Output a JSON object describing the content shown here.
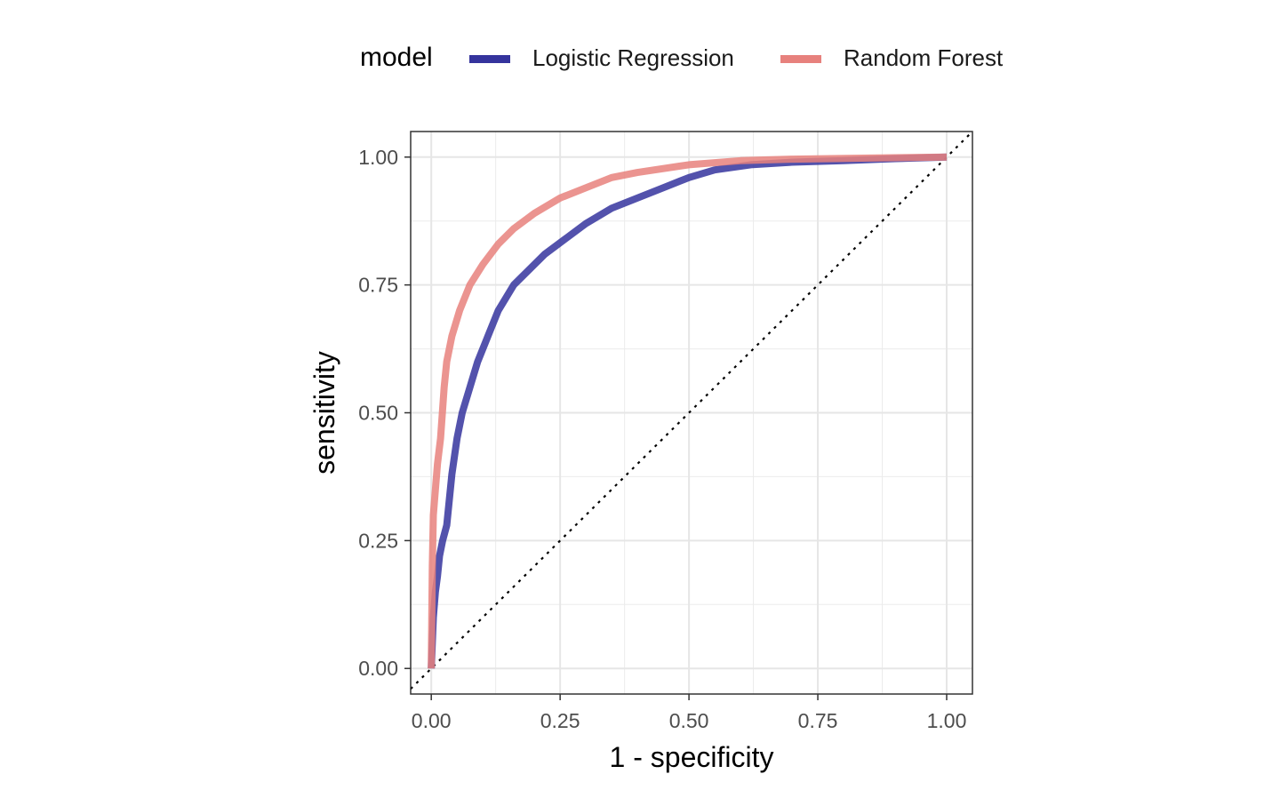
{
  "legend": {
    "title": "model",
    "items": [
      {
        "label": "Logistic Regression",
        "color": "#35349d"
      },
      {
        "label": "Random Forest",
        "color": "#e7817d"
      }
    ]
  },
  "chart_data": {
    "type": "line",
    "xlabel": "1 - specificity",
    "ylabel": "sensitivity",
    "xlim": [
      -0.04,
      1.05
    ],
    "ylim": [
      -0.05,
      1.05
    ],
    "x_ticks": [
      0,
      0.25,
      0.5,
      0.75,
      1
    ],
    "y_ticks": [
      0,
      0.25,
      0.5,
      0.75,
      1
    ],
    "x_tick_labels": [
      "0.00",
      "0.25",
      "0.50",
      "0.75",
      "1.00"
    ],
    "y_tick_labels": [
      "0.00",
      "0.25",
      "0.50",
      "0.75",
      "1.00"
    ],
    "grid": true,
    "legend_position": "top",
    "reference_line": "diagonal dotted",
    "series": [
      {
        "name": "Logistic Regression",
        "color": "#35349d",
        "points": [
          [
            0,
            0
          ],
          [
            0.002,
            0.05
          ],
          [
            0.004,
            0.1
          ],
          [
            0.008,
            0.15
          ],
          [
            0.012,
            0.18
          ],
          [
            0.016,
            0.22
          ],
          [
            0.022,
            0.25
          ],
          [
            0.03,
            0.28
          ],
          [
            0.035,
            0.33
          ],
          [
            0.04,
            0.38
          ],
          [
            0.05,
            0.45
          ],
          [
            0.06,
            0.5
          ],
          [
            0.075,
            0.55
          ],
          [
            0.09,
            0.6
          ],
          [
            0.11,
            0.65
          ],
          [
            0.13,
            0.7
          ],
          [
            0.16,
            0.75
          ],
          [
            0.19,
            0.78
          ],
          [
            0.22,
            0.81
          ],
          [
            0.26,
            0.84
          ],
          [
            0.3,
            0.87
          ],
          [
            0.35,
            0.9
          ],
          [
            0.4,
            0.92
          ],
          [
            0.45,
            0.94
          ],
          [
            0.5,
            0.96
          ],
          [
            0.55,
            0.975
          ],
          [
            0.62,
            0.985
          ],
          [
            0.7,
            0.99
          ],
          [
            0.8,
            0.993
          ],
          [
            0.9,
            0.997
          ],
          [
            1,
            1
          ]
        ]
      },
      {
        "name": "Random Forest",
        "color": "#e7817d",
        "points": [
          [
            0,
            0
          ],
          [
            0.001,
            0.1
          ],
          [
            0.002,
            0.2
          ],
          [
            0.004,
            0.3
          ],
          [
            0.008,
            0.35
          ],
          [
            0.012,
            0.4
          ],
          [
            0.018,
            0.45
          ],
          [
            0.025,
            0.55
          ],
          [
            0.03,
            0.6
          ],
          [
            0.04,
            0.65
          ],
          [
            0.055,
            0.7
          ],
          [
            0.075,
            0.75
          ],
          [
            0.1,
            0.79
          ],
          [
            0.13,
            0.83
          ],
          [
            0.16,
            0.86
          ],
          [
            0.2,
            0.89
          ],
          [
            0.25,
            0.92
          ],
          [
            0.3,
            0.94
          ],
          [
            0.35,
            0.96
          ],
          [
            0.4,
            0.97
          ],
          [
            0.5,
            0.985
          ],
          [
            0.6,
            0.993
          ],
          [
            0.7,
            0.996
          ],
          [
            0.85,
            0.998
          ],
          [
            1,
            1
          ]
        ]
      }
    ]
  }
}
